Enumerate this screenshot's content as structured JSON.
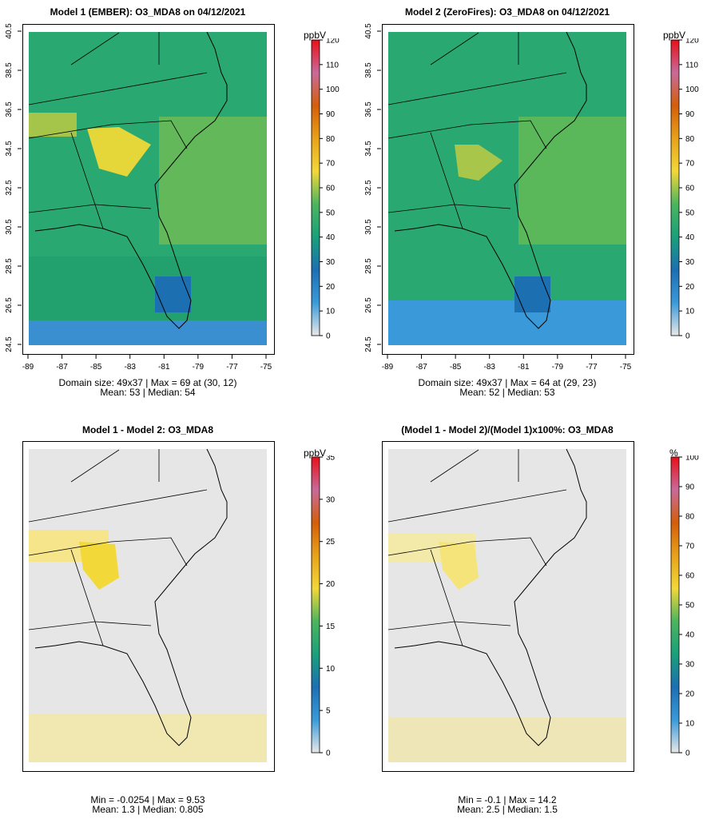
{
  "chart_data": [
    {
      "type": "heatmap",
      "title": "Model 1 (EMBER): O3_MDA8 on 04/12/2021",
      "unit": "ppbV",
      "color_range": [
        0,
        120
      ],
      "colorbar_ticks": [
        "0",
        "10",
        "20",
        "30",
        "40",
        "50",
        "60",
        "70",
        "80",
        "90",
        "100",
        "110",
        "120"
      ],
      "x_ticks": [
        "-89",
        "-87",
        "-85",
        "-83",
        "-81",
        "-79",
        "-77",
        "-75"
      ],
      "y_ticks": [
        "24.5",
        "26.5",
        "28.5",
        "30.5",
        "32.5",
        "34.5",
        "36.5",
        "38.5",
        "40.5"
      ],
      "xlim": [
        -89,
        -75
      ],
      "ylim": [
        24.5,
        40.5
      ],
      "stats_line1": "Domain size: 49x37 | Max = 69 at (30, 12)",
      "stats_line2": "Mean: 53 |  Median: 54",
      "mean": 53,
      "median": 54,
      "max": 69
    },
    {
      "type": "heatmap",
      "title": "Model 2 (ZeroFires): O3_MDA8 on 04/12/2021",
      "unit": "ppbV",
      "color_range": [
        0,
        120
      ],
      "colorbar_ticks": [
        "0",
        "10",
        "20",
        "30",
        "40",
        "50",
        "60",
        "70",
        "80",
        "90",
        "100",
        "110",
        "120"
      ],
      "x_ticks": [
        "-89",
        "-87",
        "-85",
        "-83",
        "-81",
        "-79",
        "-77",
        "-75"
      ],
      "y_ticks": [
        "24.5",
        "26.5",
        "28.5",
        "30.5",
        "32.5",
        "34.5",
        "36.5",
        "38.5",
        "40.5"
      ],
      "xlim": [
        -89,
        -75
      ],
      "ylim": [
        24.5,
        40.5
      ],
      "stats_line1": "Domain size: 49x37 | Max = 64 at (29, 23)",
      "stats_line2": "Mean: 52 |  Median: 53",
      "mean": 52,
      "median": 53,
      "max": 64
    },
    {
      "type": "heatmap",
      "title": "Model 1 - Model 2: O3_MDA8",
      "unit": "ppbV",
      "color_range": [
        0,
        35
      ],
      "colorbar_ticks": [
        "0",
        "5",
        "10",
        "15",
        "20",
        "25",
        "30",
        "35"
      ],
      "stats_line1": "Min = -0.0254 | Max = 9.53",
      "stats_line2": "Mean: 1.3 |  Median: 0.805",
      "min": -0.0254,
      "max": 9.53,
      "mean": 1.3,
      "median": 0.805
    },
    {
      "type": "heatmap",
      "title": "(Model 1 - Model 2)/(Model 1)x100%: O3_MDA8",
      "unit": "%",
      "color_range": [
        0,
        100
      ],
      "colorbar_ticks": [
        "0",
        "10",
        "20",
        "30",
        "40",
        "50",
        "60",
        "70",
        "80",
        "90",
        "100"
      ],
      "stats_line1": "Min = -0.1 | Max = 14.2",
      "stats_line2": "Mean: 2.5 |  Median: 1.5",
      "min": -0.1,
      "max": 14.2,
      "mean": 2.5,
      "median": 1.5
    }
  ],
  "colors": {
    "ramp": [
      "#e8e8e8",
      "#3a9ad9",
      "#1d6fb3",
      "#1aa07a",
      "#4bb55e",
      "#f2d838",
      "#e8a21a",
      "#d45e0a",
      "#c86a9a",
      "#e8101a"
    ],
    "diff_fill": "#f7ec9a",
    "background_gray": "#e6e6e6"
  }
}
